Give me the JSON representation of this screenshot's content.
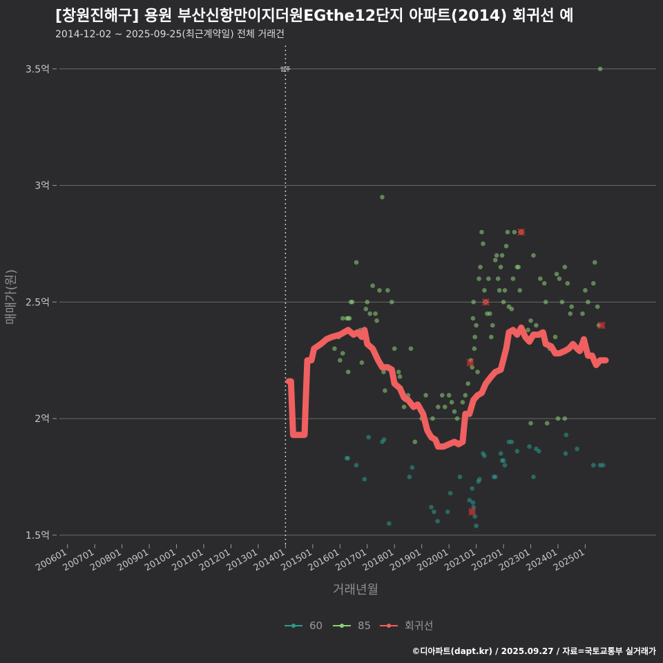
{
  "title": "[창원진해구] 용원 부산신항만이지더원EGthe12단지 아파트(2014) 회귀선 예",
  "subtitle": "2014-12-02 ~ 2025-09-25(최근계약일) 전체 거래건",
  "caption": "©디아파트(dapt.kr) / 2025.09.27 / 자료=국토교통부 실거래가",
  "colors": {
    "background": "#2b2b2d",
    "grid": "#6a6a6a",
    "series_60": "#2a9d8f",
    "series_85": "#8fd17a",
    "regression": "#f06060",
    "marker_x": "#e02020"
  },
  "chart_data": {
    "type": "scatter",
    "title": "[창원진해구] 용원 부산신항만이지더원EGthe12단지 아파트(2014) 회귀선 예",
    "subtitle": "2014-12-02 ~ 2025-09-25(최근계약일) 전체 거래건",
    "xlabel": "거래년월",
    "ylabel": "매매가(원)",
    "x_range": [
      2005.5,
      2027.6
    ],
    "ylim": [
      1.47,
      3.6
    ],
    "grid": "horizontal",
    "legend_position": "bottom",
    "y_ticks": [
      {
        "value": 1.5,
        "label": "1.5억"
      },
      {
        "value": 2.0,
        "label": "2억"
      },
      {
        "value": 2.5,
        "label": "2.5억"
      },
      {
        "value": 3.0,
        "label": "3억"
      },
      {
        "value": 3.5,
        "label": "3.5억"
      }
    ],
    "x_ticks": [
      {
        "value": 2006,
        "label": "200601"
      },
      {
        "value": 2007,
        "label": "200701"
      },
      {
        "value": 2008,
        "label": "200801"
      },
      {
        "value": 2009,
        "label": "200901"
      },
      {
        "value": 2010,
        "label": "201001"
      },
      {
        "value": 2011,
        "label": "201101"
      },
      {
        "value": 2012,
        "label": "201201"
      },
      {
        "value": 2013,
        "label": "201301"
      },
      {
        "value": 2014,
        "label": "201401"
      },
      {
        "value": 2015,
        "label": "201501"
      },
      {
        "value": 2016,
        "label": "201601"
      },
      {
        "value": 2017,
        "label": "201701"
      },
      {
        "value": 2018,
        "label": "201801"
      },
      {
        "value": 2019,
        "label": "201901"
      },
      {
        "value": 2020,
        "label": "202001"
      },
      {
        "value": 2021,
        "label": "202101"
      },
      {
        "value": 2022,
        "label": "202201"
      },
      {
        "value": 2023,
        "label": "202301"
      },
      {
        "value": 2024,
        "label": "202401"
      },
      {
        "value": 2025,
        "label": "202501"
      }
    ],
    "reference_line": {
      "x": 2014.0,
      "label": "입주"
    },
    "legend": [
      {
        "key": "s60",
        "label": "60"
      },
      {
        "key": "s85",
        "label": "85"
      },
      {
        "key": "reg",
        "label": "회귀선"
      }
    ],
    "series": [
      {
        "name": "60",
        "points": [
          [
            2016.25,
            1.83
          ],
          [
            2016.29,
            1.83
          ],
          [
            2016.6,
            1.8
          ],
          [
            2016.9,
            1.74
          ],
          [
            2017.05,
            1.92
          ],
          [
            2017.55,
            1.9
          ],
          [
            2017.62,
            1.91
          ],
          [
            2017.8,
            1.55
          ],
          [
            2018.55,
            1.75
          ],
          [
            2018.65,
            1.79
          ],
          [
            2019.35,
            1.62
          ],
          [
            2019.45,
            1.6
          ],
          [
            2019.58,
            1.56
          ],
          [
            2019.95,
            1.6
          ],
          [
            2020.05,
            1.68
          ],
          [
            2020.4,
            1.75
          ],
          [
            2020.75,
            1.65
          ],
          [
            2020.85,
            1.7
          ],
          [
            2020.88,
            1.64
          ],
          [
            2020.9,
            1.62
          ],
          [
            2020.95,
            1.58
          ],
          [
            2021.0,
            1.54
          ],
          [
            2021.08,
            1.73
          ],
          [
            2021.12,
            1.74
          ],
          [
            2021.25,
            1.85
          ],
          [
            2021.3,
            1.84
          ],
          [
            2021.65,
            1.75
          ],
          [
            2021.7,
            1.75
          ],
          [
            2021.9,
            1.85
          ],
          [
            2021.95,
            1.82
          ],
          [
            2022.0,
            1.82
          ],
          [
            2022.05,
            1.8
          ],
          [
            2022.2,
            1.9
          ],
          [
            2022.3,
            1.9
          ],
          [
            2022.5,
            1.86
          ],
          [
            2022.95,
            1.88
          ],
          [
            2023.1,
            1.75
          ],
          [
            2023.2,
            1.87
          ],
          [
            2023.3,
            1.86
          ],
          [
            2024.28,
            1.85
          ],
          [
            2024.3,
            1.93
          ],
          [
            2024.7,
            1.87
          ],
          [
            2025.3,
            1.8
          ],
          [
            2025.55,
            1.8
          ],
          [
            2025.65,
            1.8
          ]
        ]
      },
      {
        "name": "85",
        "points": [
          [
            2015.8,
            2.3
          ],
          [
            2015.95,
            2.35
          ],
          [
            2016.1,
            2.43
          ],
          [
            2016.25,
            2.43
          ],
          [
            2016.3,
            2.43
          ],
          [
            2016.35,
            2.43
          ],
          [
            2016.4,
            2.5
          ],
          [
            2016.1,
            2.28
          ],
          [
            2016.3,
            2.2
          ],
          [
            2016.0,
            2.25
          ],
          [
            2016.45,
            2.5
          ],
          [
            2016.6,
            2.67
          ],
          [
            2016.75,
            2.38
          ],
          [
            2016.8,
            2.24
          ],
          [
            2016.95,
            2.47
          ],
          [
            2017.0,
            2.5
          ],
          [
            2017.1,
            2.45
          ],
          [
            2017.2,
            2.57
          ],
          [
            2017.3,
            2.45
          ],
          [
            2017.35,
            2.42
          ],
          [
            2017.45,
            2.55
          ],
          [
            2017.55,
            2.95
          ],
          [
            2017.6,
            2.2
          ],
          [
            2017.65,
            2.12
          ],
          [
            2017.75,
            2.55
          ],
          [
            2017.9,
            2.5
          ],
          [
            2018.0,
            2.3
          ],
          [
            2018.15,
            2.2
          ],
          [
            2018.2,
            2.18
          ],
          [
            2018.35,
            2.05
          ],
          [
            2018.4,
            2.08
          ],
          [
            2018.5,
            2.1
          ],
          [
            2018.6,
            2.3
          ],
          [
            2018.75,
            1.9
          ],
          [
            2019.0,
            2.0
          ],
          [
            2019.15,
            2.1
          ],
          [
            2019.4,
            2.0
          ],
          [
            2019.6,
            2.05
          ],
          [
            2019.75,
            2.1
          ],
          [
            2019.85,
            2.05
          ],
          [
            2020.0,
            2.1
          ],
          [
            2020.1,
            2.07
          ],
          [
            2020.2,
            2.03
          ],
          [
            2020.3,
            2.0
          ],
          [
            2020.5,
            2.07
          ],
          [
            2020.6,
            2.1
          ],
          [
            2020.7,
            2.15
          ],
          [
            2020.8,
            2.25
          ],
          [
            2020.85,
            2.22
          ],
          [
            2020.88,
            2.43
          ],
          [
            2020.9,
            2.5
          ],
          [
            2020.93,
            2.3
          ],
          [
            2020.95,
            2.35
          ],
          [
            2021.0,
            2.4
          ],
          [
            2021.05,
            2.2
          ],
          [
            2021.1,
            2.6
          ],
          [
            2021.15,
            2.65
          ],
          [
            2021.2,
            2.8
          ],
          [
            2021.25,
            2.75
          ],
          [
            2021.3,
            2.55
          ],
          [
            2021.35,
            2.5
          ],
          [
            2021.4,
            2.45
          ],
          [
            2021.45,
            2.6
          ],
          [
            2021.5,
            2.45
          ],
          [
            2021.55,
            2.35
          ],
          [
            2021.6,
            2.4
          ],
          [
            2021.7,
            2.68
          ],
          [
            2021.75,
            2.7
          ],
          [
            2021.8,
            2.6
          ],
          [
            2021.85,
            2.55
          ],
          [
            2021.9,
            2.65
          ],
          [
            2021.95,
            2.7
          ],
          [
            2022.0,
            2.5
          ],
          [
            2022.05,
            2.55
          ],
          [
            2022.1,
            2.74
          ],
          [
            2022.15,
            2.8
          ],
          [
            2022.2,
            2.48
          ],
          [
            2022.3,
            2.47
          ],
          [
            2022.35,
            2.6
          ],
          [
            2022.4,
            2.8
          ],
          [
            2022.5,
            2.65
          ],
          [
            2022.55,
            2.65
          ],
          [
            2022.6,
            2.55
          ],
          [
            2022.65,
            2.8
          ],
          [
            2022.8,
            2.35
          ],
          [
            2022.9,
            2.38
          ],
          [
            2023.0,
            2.42
          ],
          [
            2023.1,
            2.7
          ],
          [
            2023.2,
            2.4
          ],
          [
            2023.35,
            2.6
          ],
          [
            2023.5,
            2.58
          ],
          [
            2023.55,
            2.5
          ],
          [
            2023.7,
            2.3
          ],
          [
            2023.9,
            2.35
          ],
          [
            2023.95,
            2.62
          ],
          [
            2024.05,
            2.6
          ],
          [
            2024.15,
            2.5
          ],
          [
            2024.25,
            2.65
          ],
          [
            2024.35,
            2.58
          ],
          [
            2024.45,
            2.45
          ],
          [
            2024.5,
            2.48
          ],
          [
            2024.9,
            2.45
          ],
          [
            2025.0,
            2.55
          ],
          [
            2025.1,
            2.5
          ],
          [
            2025.3,
            2.58
          ],
          [
            2025.35,
            2.67
          ],
          [
            2025.45,
            2.48
          ],
          [
            2025.5,
            2.4
          ],
          [
            2025.55,
            3.5
          ],
          [
            2024.0,
            2.0
          ],
          [
            2024.25,
            2.0
          ],
          [
            2023.0,
            1.98
          ],
          [
            2023.6,
            1.98
          ]
        ]
      }
    ],
    "regression": {
      "name": "회귀선",
      "points": [
        [
          2014.12,
          2.16
        ],
        [
          2014.2,
          2.16
        ],
        [
          2014.28,
          1.93
        ],
        [
          2014.7,
          1.93
        ],
        [
          2014.75,
          2.1
        ],
        [
          2014.8,
          2.25
        ],
        [
          2014.95,
          2.25
        ],
        [
          2015.05,
          2.3
        ],
        [
          2015.3,
          2.32
        ],
        [
          2015.5,
          2.34
        ],
        [
          2015.7,
          2.35
        ],
        [
          2016.0,
          2.36
        ],
        [
          2016.3,
          2.38
        ],
        [
          2016.5,
          2.36
        ],
        [
          2016.65,
          2.37
        ],
        [
          2016.8,
          2.35
        ],
        [
          2016.9,
          2.38
        ],
        [
          2017.0,
          2.32
        ],
        [
          2017.2,
          2.3
        ],
        [
          2017.4,
          2.25
        ],
        [
          2017.55,
          2.22
        ],
        [
          2017.75,
          2.22
        ],
        [
          2017.9,
          2.21
        ],
        [
          2018.0,
          2.15
        ],
        [
          2018.2,
          2.13
        ],
        [
          2018.35,
          2.09
        ],
        [
          2018.5,
          2.08
        ],
        [
          2018.7,
          2.05
        ],
        [
          2018.85,
          2.06
        ],
        [
          2019.05,
          2.02
        ],
        [
          2019.2,
          1.95
        ],
        [
          2019.35,
          1.92
        ],
        [
          2019.5,
          1.91
        ],
        [
          2019.6,
          1.88
        ],
        [
          2019.8,
          1.88
        ],
        [
          2020.0,
          1.89
        ],
        [
          2020.2,
          1.9
        ],
        [
          2020.35,
          1.89
        ],
        [
          2020.5,
          1.9
        ],
        [
          2020.6,
          2.02
        ],
        [
          2020.75,
          2.02
        ],
        [
          2020.9,
          2.08
        ],
        [
          2021.05,
          2.1
        ],
        [
          2021.2,
          2.11
        ],
        [
          2021.35,
          2.15
        ],
        [
          2021.55,
          2.18
        ],
        [
          2021.7,
          2.2
        ],
        [
          2021.9,
          2.21
        ],
        [
          2022.1,
          2.3
        ],
        [
          2022.2,
          2.37
        ],
        [
          2022.35,
          2.38
        ],
        [
          2022.5,
          2.36
        ],
        [
          2022.65,
          2.39
        ],
        [
          2022.8,
          2.35
        ],
        [
          2022.95,
          2.33
        ],
        [
          2023.1,
          2.36
        ],
        [
          2023.3,
          2.36
        ],
        [
          2023.45,
          2.37
        ],
        [
          2023.55,
          2.32
        ],
        [
          2023.75,
          2.31
        ],
        [
          2023.9,
          2.28
        ],
        [
          2024.05,
          2.28
        ],
        [
          2024.25,
          2.29
        ],
        [
          2024.4,
          2.3
        ],
        [
          2024.55,
          2.32
        ],
        [
          2024.7,
          2.3
        ],
        [
          2024.8,
          2.29
        ],
        [
          2024.95,
          2.34
        ],
        [
          2025.1,
          2.27
        ],
        [
          2025.25,
          2.27
        ],
        [
          2025.4,
          2.23
        ],
        [
          2025.55,
          2.25
        ],
        [
          2025.75,
          2.25
        ]
      ]
    },
    "x_markers": [
      [
        2020.78,
        2.24
      ],
      [
        2020.85,
        1.6
      ],
      [
        2021.35,
        2.5
      ],
      [
        2022.65,
        2.8
      ],
      [
        2025.6,
        2.4
      ]
    ]
  }
}
